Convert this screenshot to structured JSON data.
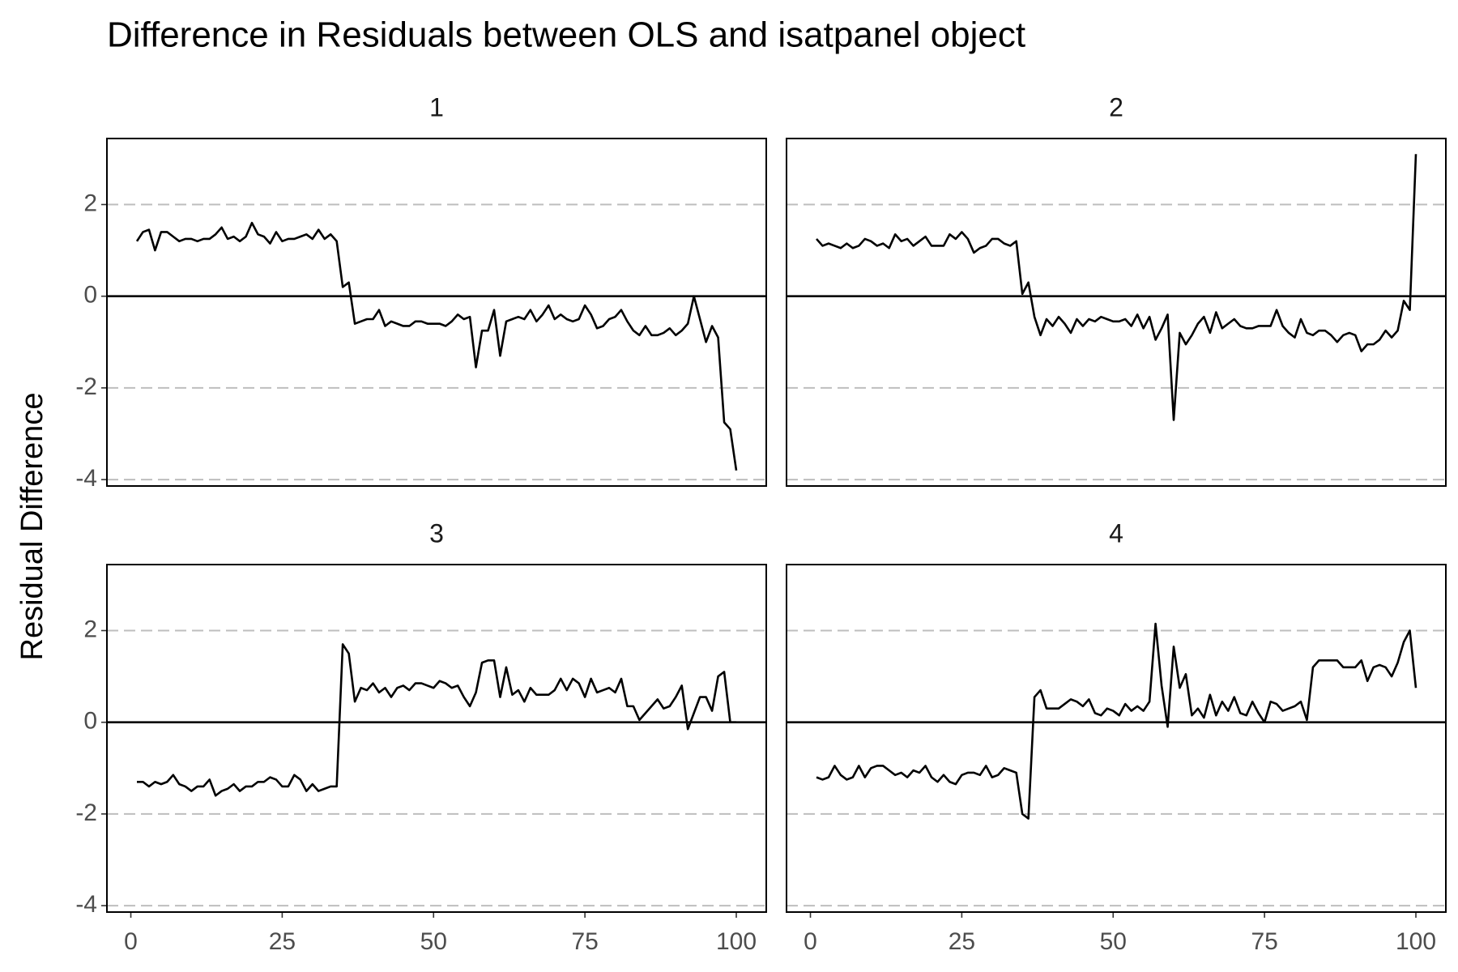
{
  "chart_data": {
    "type": "line",
    "title": "Difference in Residuals between OLS and isatpanel object",
    "y_label": "Residual Difference",
    "color": "#000000",
    "hline": 0,
    "grid": true,
    "xlim": [
      -3.95,
      104.95
    ],
    "xticks": [
      0,
      25,
      50,
      75,
      100
    ],
    "ylim": [
      -4.14,
      3.44
    ],
    "yticks": [
      -4,
      -2,
      0,
      2
    ],
    "x": [
      1,
      2,
      3,
      4,
      5,
      6,
      7,
      8,
      9,
      10,
      11,
      12,
      13,
      14,
      15,
      16,
      17,
      18,
      19,
      20,
      21,
      22,
      23,
      24,
      25,
      26,
      27,
      28,
      29,
      30,
      31,
      32,
      33,
      34,
      35,
      36,
      37,
      38,
      39,
      40,
      41,
      42,
      43,
      44,
      45,
      46,
      47,
      48,
      49,
      50,
      51,
      52,
      53,
      54,
      55,
      56,
      57,
      58,
      59,
      60,
      61,
      62,
      63,
      64,
      65,
      66,
      67,
      68,
      69,
      70,
      71,
      72,
      73,
      74,
      75,
      76,
      77,
      78,
      79,
      80,
      81,
      82,
      83,
      84,
      85,
      86,
      87,
      88,
      89,
      90,
      91,
      92,
      93,
      94,
      95,
      96,
      97,
      98,
      99,
      100
    ],
    "panels": [
      {
        "title": "1",
        "values": [
          1.2,
          1.4,
          1.45,
          1.0,
          1.4,
          1.4,
          1.3,
          1.2,
          1.25,
          1.25,
          1.2,
          1.25,
          1.25,
          1.35,
          1.5,
          1.25,
          1.3,
          1.2,
          1.3,
          1.6,
          1.35,
          1.3,
          1.15,
          1.4,
          1.2,
          1.25,
          1.25,
          1.3,
          1.35,
          1.25,
          1.45,
          1.25,
          1.35,
          1.2,
          0.2,
          0.3,
          -0.6,
          -0.55,
          -0.5,
          -0.5,
          -0.3,
          -0.65,
          -0.55,
          -0.6,
          -0.65,
          -0.65,
          -0.55,
          -0.55,
          -0.6,
          -0.6,
          -0.6,
          -0.65,
          -0.55,
          -0.4,
          -0.5,
          -0.45,
          -1.55,
          -0.75,
          -0.75,
          -0.3,
          -1.3,
          -0.55,
          -0.5,
          -0.45,
          -0.5,
          -0.3,
          -0.55,
          -0.4,
          -0.2,
          -0.5,
          -0.4,
          -0.5,
          -0.55,
          -0.5,
          -0.2,
          -0.4,
          -0.7,
          -0.65,
          -0.5,
          -0.45,
          -0.3,
          -0.55,
          -0.75,
          -0.85,
          -0.65,
          -0.85,
          -0.85,
          -0.8,
          -0.7,
          -0.85,
          -0.75,
          -0.6,
          0,
          -0.5,
          -1.0,
          -0.65,
          -0.9,
          -2.75,
          -2.9,
          -3.8
        ]
      },
      {
        "title": "2",
        "values": [
          1.25,
          1.1,
          1.15,
          1.1,
          1.05,
          1.15,
          1.05,
          1.1,
          1.25,
          1.2,
          1.1,
          1.15,
          1.05,
          1.35,
          1.2,
          1.25,
          1.1,
          1.2,
          1.3,
          1.1,
          1.1,
          1.1,
          1.35,
          1.25,
          1.4,
          1.25,
          0.95,
          1.05,
          1.1,
          1.25,
          1.25,
          1.15,
          1.1,
          1.2,
          0.05,
          0.3,
          -0.45,
          -0.85,
          -0.5,
          -0.65,
          -0.45,
          -0.6,
          -0.8,
          -0.5,
          -0.65,
          -0.5,
          -0.55,
          -0.45,
          -0.5,
          -0.55,
          -0.55,
          -0.5,
          -0.65,
          -0.4,
          -0.7,
          -0.45,
          -0.95,
          -0.7,
          -0.4,
          -2.7,
          -0.8,
          -1.05,
          -0.85,
          -0.6,
          -0.45,
          -0.8,
          -0.35,
          -0.7,
          -0.6,
          -0.5,
          -0.65,
          -0.7,
          -0.7,
          -0.65,
          -0.65,
          -0.65,
          -0.3,
          -0.65,
          -0.8,
          -0.9,
          -0.5,
          -0.8,
          -0.85,
          -0.75,
          -0.75,
          -0.85,
          -1.0,
          -0.85,
          -0.8,
          -0.85,
          -1.2,
          -1.05,
          -1.05,
          -0.95,
          -0.75,
          -0.9,
          -0.75,
          -0.1,
          -0.3,
          3.1
        ]
      },
      {
        "title": "3",
        "values": [
          -1.3,
          -1.3,
          -1.4,
          -1.3,
          -1.35,
          -1.3,
          -1.15,
          -1.35,
          -1.4,
          -1.5,
          -1.4,
          -1.4,
          -1.25,
          -1.6,
          -1.5,
          -1.45,
          -1.35,
          -1.5,
          -1.4,
          -1.4,
          -1.3,
          -1.3,
          -1.2,
          -1.25,
          -1.4,
          -1.4,
          -1.15,
          -1.25,
          -1.5,
          -1.35,
          -1.5,
          -1.45,
          -1.4,
          -1.4,
          1.7,
          1.5,
          0.45,
          0.75,
          0.7,
          0.85,
          0.65,
          0.75,
          0.55,
          0.75,
          0.8,
          0.7,
          0.85,
          0.85,
          0.8,
          0.75,
          0.9,
          0.85,
          0.75,
          0.8,
          0.55,
          0.35,
          0.65,
          1.3,
          1.35,
          1.35,
          0.55,
          1.2,
          0.6,
          0.7,
          0.45,
          0.75,
          0.6,
          0.6,
          0.6,
          0.7,
          0.95,
          0.7,
          0.95,
          0.85,
          0.55,
          0.95,
          0.65,
          0.7,
          0.75,
          0.65,
          0.95,
          0.35,
          0.35,
          0.05,
          0.2,
          0.35,
          0.5,
          0.3,
          0.35,
          0.55,
          0.8,
          -0.15,
          0.2,
          0.55,
          0.55,
          0.25,
          1.0,
          1.1,
          0.0,
          0.0
        ]
      },
      {
        "title": "4",
        "values": [
          -1.2,
          -1.25,
          -1.2,
          -0.95,
          -1.15,
          -1.25,
          -1.2,
          -0.95,
          -1.2,
          -1.0,
          -0.95,
          -0.95,
          -1.05,
          -1.15,
          -1.1,
          -1.2,
          -1.05,
          -1.1,
          -0.95,
          -1.2,
          -1.3,
          -1.15,
          -1.3,
          -1.35,
          -1.15,
          -1.1,
          -1.1,
          -1.15,
          -0.95,
          -1.2,
          -1.15,
          -1.0,
          -1.05,
          -1.1,
          -2.0,
          -2.1,
          0.55,
          0.7,
          0.3,
          0.3,
          0.3,
          0.4,
          0.5,
          0.45,
          0.35,
          0.5,
          0.2,
          0.15,
          0.3,
          0.25,
          0.15,
          0.4,
          0.25,
          0.35,
          0.25,
          0.45,
          2.15,
          0.8,
          -0.1,
          1.65,
          0.75,
          1.05,
          0.15,
          0.3,
          0.1,
          0.6,
          0.15,
          0.45,
          0.25,
          0.55,
          0.2,
          0.15,
          0.45,
          0.2,
          0.0,
          0.45,
          0.4,
          0.25,
          0.3,
          0.35,
          0.45,
          0.05,
          1.2,
          1.35,
          1.35,
          1.35,
          1.35,
          1.2,
          1.2,
          1.2,
          1.35,
          0.9,
          1.2,
          1.25,
          1.2,
          1.0,
          1.3,
          1.75,
          2.0,
          0.75
        ]
      }
    ]
  }
}
